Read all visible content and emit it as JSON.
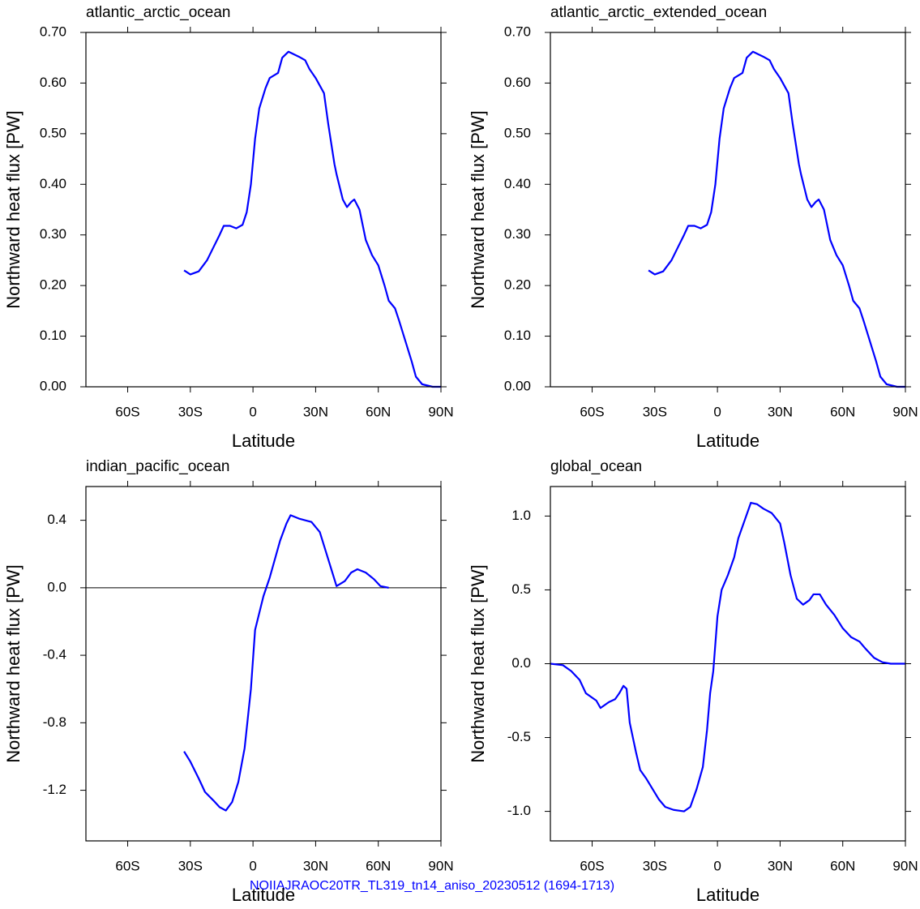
{
  "chart_data": [
    {
      "type": "line",
      "title": "atlantic_arctic_ocean",
      "x_label": "Latitude",
      "y_label": "Northward heat flux [PW]",
      "color": "#0000ff",
      "x": [
        -33,
        -30,
        -26,
        -22,
        -19,
        -16,
        -14,
        -11,
        -8,
        -5,
        -3,
        -1,
        1,
        3,
        6,
        8,
        12,
        14,
        17,
        19,
        22,
        25,
        27,
        30,
        34,
        36,
        39,
        40,
        43,
        45,
        47,
        48.5,
        51,
        54,
        57,
        60,
        63,
        65,
        68,
        70,
        73,
        76,
        78,
        81,
        86,
        90
      ],
      "values": [
        0.23,
        0.222,
        0.228,
        0.25,
        0.275,
        0.3,
        0.318,
        0.318,
        0.313,
        0.32,
        0.345,
        0.4,
        0.49,
        0.55,
        0.59,
        0.61,
        0.62,
        0.65,
        0.662,
        0.658,
        0.652,
        0.645,
        0.628,
        0.61,
        0.58,
        0.52,
        0.44,
        0.42,
        0.37,
        0.355,
        0.365,
        0.37,
        0.35,
        0.29,
        0.26,
        0.24,
        0.2,
        0.17,
        0.155,
        0.13,
        0.09,
        0.05,
        0.02,
        0.005,
        0.0,
        0.0
      ],
      "xlim": [
        -80,
        90
      ],
      "xticks": [
        {
          "value": -60,
          "label": "60S"
        },
        {
          "value": -30,
          "label": "30S"
        },
        0,
        {
          "value": 30,
          "label": "30N"
        },
        {
          "value": 60,
          "label": "60N"
        },
        {
          "value": 90,
          "label": "90N"
        }
      ],
      "ylim": [
        0,
        0.7
      ],
      "yticks": [
        {
          "value": 0,
          "label": "0.00"
        },
        {
          "value": 0.1,
          "label": "0.10"
        },
        {
          "value": 0.2,
          "label": "0.20"
        },
        {
          "value": 0.3,
          "label": "0.30"
        },
        {
          "value": 0.4,
          "label": "0.40"
        },
        {
          "value": 0.5,
          "label": "0.50"
        },
        {
          "value": 0.6,
          "label": "0.60"
        },
        {
          "value": 0.7,
          "label": "0.70"
        }
      ],
      "zero_line": false
    },
    {
      "type": "line",
      "title": "atlantic_arctic_extended_ocean",
      "x_label": "Latitude",
      "y_label": "Northward heat flux [PW]",
      "color": "#0000ff",
      "x": [
        -33,
        -30,
        -26,
        -22,
        -19,
        -16,
        -14,
        -11,
        -8,
        -5,
        -3,
        -1,
        1,
        3,
        6,
        8,
        12,
        14,
        17,
        19,
        22,
        25,
        27,
        30,
        34,
        36,
        39,
        40,
        43,
        45,
        47,
        48.5,
        51,
        54,
        57,
        60,
        63,
        65,
        68,
        70,
        73,
        76,
        78,
        81,
        86,
        90
      ],
      "values": [
        0.23,
        0.222,
        0.228,
        0.25,
        0.275,
        0.3,
        0.318,
        0.318,
        0.313,
        0.32,
        0.345,
        0.4,
        0.49,
        0.55,
        0.59,
        0.61,
        0.62,
        0.65,
        0.662,
        0.658,
        0.652,
        0.645,
        0.628,
        0.61,
        0.58,
        0.52,
        0.44,
        0.42,
        0.37,
        0.355,
        0.365,
        0.37,
        0.35,
        0.29,
        0.26,
        0.24,
        0.2,
        0.17,
        0.155,
        0.13,
        0.09,
        0.05,
        0.02,
        0.005,
        0.0,
        0.0
      ],
      "xlim": [
        -80,
        90
      ],
      "xticks": [
        {
          "value": -60,
          "label": "60S"
        },
        {
          "value": -30,
          "label": "30S"
        },
        0,
        {
          "value": 30,
          "label": "30N"
        },
        {
          "value": 60,
          "label": "60N"
        },
        {
          "value": 90,
          "label": "90N"
        }
      ],
      "ylim": [
        0,
        0.7
      ],
      "yticks": [
        {
          "value": 0,
          "label": "0.00"
        },
        {
          "value": 0.1,
          "label": "0.10"
        },
        {
          "value": 0.2,
          "label": "0.20"
        },
        {
          "value": 0.3,
          "label": "0.30"
        },
        {
          "value": 0.4,
          "label": "0.40"
        },
        {
          "value": 0.5,
          "label": "0.50"
        },
        {
          "value": 0.6,
          "label": "0.60"
        },
        {
          "value": 0.7,
          "label": "0.70"
        }
      ],
      "zero_line": false
    },
    {
      "type": "line",
      "title": "indian_pacific_ocean",
      "x_label": "Latitude",
      "y_label": "Northward heat flux [PW]",
      "color": "#0000ff",
      "x": [
        -33,
        -30,
        -26,
        -23,
        -19,
        -16,
        -13,
        -10,
        -7,
        -4,
        -1,
        1,
        5,
        8,
        13,
        16,
        18,
        22,
        28,
        32,
        36,
        39,
        40,
        44,
        47,
        50,
        54,
        58,
        61,
        65
      ],
      "values": [
        -0.97,
        -1.03,
        -1.13,
        -1.21,
        -1.26,
        -1.3,
        -1.32,
        -1.27,
        -1.15,
        -0.95,
        -0.6,
        -0.25,
        -0.05,
        0.06,
        0.28,
        0.38,
        0.43,
        0.41,
        0.39,
        0.33,
        0.17,
        0.05,
        0.01,
        0.04,
        0.09,
        0.11,
        0.09,
        0.05,
        0.01,
        0.0
      ],
      "xlim": [
        -80,
        90
      ],
      "xticks": [
        {
          "value": -60,
          "label": "60S"
        },
        {
          "value": -30,
          "label": "30S"
        },
        0,
        {
          "value": 30,
          "label": "30N"
        },
        {
          "value": 60,
          "label": "60N"
        },
        {
          "value": 90,
          "label": "90N"
        }
      ],
      "ylim": [
        -1.5,
        0.6
      ],
      "yticks": [
        -1.2,
        -0.8,
        -0.4,
        {
          "value": 0,
          "label": "0.0"
        },
        0.4
      ],
      "zero_line": true
    },
    {
      "type": "line",
      "title": "global_ocean",
      "x_label": "Latitude",
      "y_label": "Northward heat flux [PW]",
      "color": "#0000ff",
      "x": [
        -80,
        -74,
        -70,
        -66,
        -63,
        -58,
        -56,
        -52,
        -49,
        -47,
        -45,
        -43.5,
        -42,
        -39,
        -37,
        -34,
        -31,
        -28,
        -25,
        -21,
        -16,
        -13,
        -10,
        -7,
        -5,
        -3.5,
        -2,
        0,
        2,
        5,
        8,
        10,
        13,
        16,
        19,
        22,
        26,
        30,
        32,
        35,
        38,
        41,
        44,
        46,
        49,
        52,
        56,
        60,
        64,
        68,
        71,
        75,
        79,
        83,
        90
      ],
      "values": [
        0.0,
        -0.01,
        -0.05,
        -0.11,
        -0.2,
        -0.25,
        -0.3,
        -0.26,
        -0.24,
        -0.2,
        -0.15,
        -0.17,
        -0.4,
        -0.6,
        -0.72,
        -0.78,
        -0.85,
        -0.92,
        -0.97,
        -0.99,
        -1.0,
        -0.97,
        -0.85,
        -0.7,
        -0.45,
        -0.2,
        -0.05,
        0.32,
        0.5,
        0.6,
        0.72,
        0.85,
        0.97,
        1.09,
        1.08,
        1.05,
        1.02,
        0.95,
        0.82,
        0.6,
        0.44,
        0.4,
        0.43,
        0.47,
        0.47,
        0.4,
        0.33,
        0.24,
        0.18,
        0.15,
        0.1,
        0.04,
        0.01,
        0.0,
        0.0
      ],
      "xlim": [
        -80,
        90
      ],
      "xticks": [
        {
          "value": -60,
          "label": "60S"
        },
        {
          "value": -30,
          "label": "30S"
        },
        0,
        {
          "value": 30,
          "label": "30N"
        },
        {
          "value": 60,
          "label": "60N"
        },
        {
          "value": 90,
          "label": "90N"
        }
      ],
      "ylim": [
        -1.2,
        1.2
      ],
      "yticks": [
        {
          "value": -1,
          "label": "-1.0"
        },
        -0.5,
        {
          "value": 0,
          "label": "0.0"
        },
        0.5,
        {
          "value": 1,
          "label": "1.0"
        }
      ],
      "zero_line": true
    }
  ],
  "caption": "NOIIAJRAOC20TR_TL319_tn14_aniso_20230512 (1694-1713)"
}
